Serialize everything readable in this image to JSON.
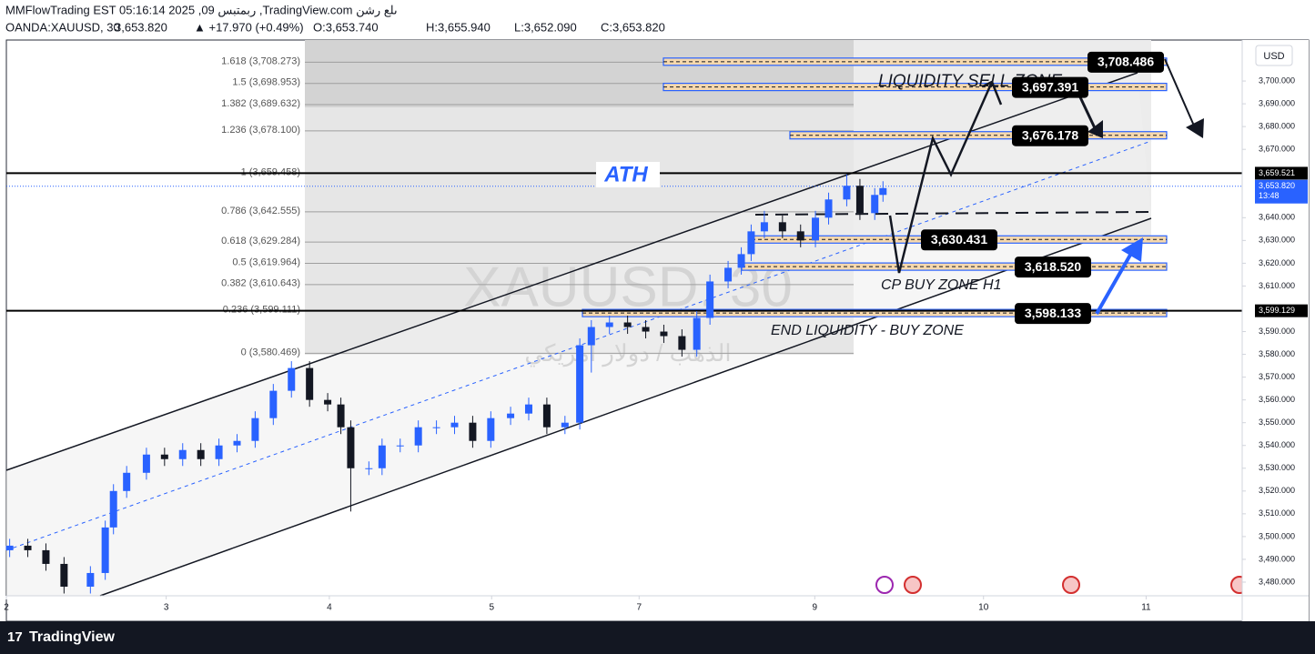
{
  "header": {
    "line1": "MMFlowTrading EST 05:16:14 2025 ,09 ربمتبس ,TradingView.com ىلع رشن",
    "symbol": "OANDA:XAUUSD, 30",
    "price": "3,653.820",
    "change": "▲ +17.970 (+0.49%)",
    "open": "O:3,653.740",
    "high": "H:3,655.940",
    "low": "L:3,652.090",
    "close": "C:3,653.820"
  },
  "footer": {
    "brand": "TradingView"
  },
  "chart_data": {
    "type": "candlestick",
    "up_color": "#2962ff",
    "down_color": "#131722",
    "currency": "USD",
    "x": [
      0.02,
      0.13,
      0.24,
      0.35,
      0.51,
      0.6,
      0.65,
      0.73,
      0.85,
      0.96,
      1.07,
      1.18,
      1.29,
      1.4,
      1.51,
      1.62,
      1.73,
      1.84,
      1.95,
      2.03,
      2.09,
      2.2,
      2.28,
      2.39,
      2.5,
      2.61,
      2.72,
      2.83,
      2.94,
      3.06,
      3.17,
      3.28,
      3.39,
      3.48,
      3.55,
      3.66,
      3.77,
      3.88,
      3.99,
      4.1,
      4.19,
      4.27,
      4.38,
      4.46,
      4.52,
      4.6,
      4.71,
      4.82,
      4.91,
      4.99,
      5.1,
      5.18,
      5.27,
      5.32
    ],
    "open": [
      3494,
      3496,
      3494,
      3488,
      3478,
      3484,
      3504,
      3520,
      3528,
      3536,
      3534,
      3538,
      3534,
      3540,
      3542,
      3552,
      3564,
      3574,
      3560,
      3558,
      3548,
      3530,
      3530,
      3540,
      3540,
      3548,
      3548,
      3550,
      3542,
      3552,
      3554,
      3558,
      3548,
      3550,
      3584,
      3592,
      3594,
      3592,
      3590,
      3588,
      3582,
      3596,
      3612,
      3618,
      3624,
      3634,
      3638,
      3634,
      3630,
      3640,
      3648,
      3654,
      3642,
      3650
    ],
    "high": [
      3499,
      3499,
      3497,
      3491,
      3487,
      3507,
      3523,
      3531,
      3539,
      3539,
      3541,
      3541,
      3543,
      3545,
      3555,
      3567,
      3577,
      3577,
      3563,
      3561,
      3551,
      3533,
      3543,
      3543,
      3551,
      3551,
      3553,
      3553,
      3555,
      3557,
      3561,
      3561,
      3553,
      3587,
      3595,
      3597,
      3597,
      3595,
      3593,
      3591,
      3599,
      3615,
      3621,
      3627,
      3637,
      3643,
      3641,
      3637,
      3643,
      3651,
      3659,
      3657,
      3653,
      3656
    ],
    "low": [
      3491,
      3491,
      3485,
      3475,
      3475,
      3481,
      3501,
      3517,
      3525,
      3531,
      3531,
      3531,
      3531,
      3537,
      3539,
      3549,
      3561,
      3557,
      3555,
      3545,
      3511,
      3527,
      3527,
      3537,
      3537,
      3545,
      3545,
      3539,
      3539,
      3549,
      3551,
      3545,
      3545,
      3547,
      3572,
      3589,
      3589,
      3587,
      3585,
      3579,
      3579,
      3593,
      3609,
      3615,
      3621,
      3631,
      3631,
      3627,
      3627,
      3637,
      3645,
      3639,
      3639,
      3647
    ],
    "close": [
      3496,
      3494,
      3488,
      3478,
      3484,
      3504,
      3520,
      3528,
      3536,
      3534,
      3538,
      3534,
      3540,
      3542,
      3552,
      3564,
      3574,
      3560,
      3558,
      3548,
      3530,
      3530,
      3540,
      3540,
      3548,
      3548,
      3550,
      3542,
      3552,
      3554,
      3558,
      3548,
      3550,
      3584,
      3592,
      3594,
      3592,
      3590,
      3588,
      3582,
      3596,
      3612,
      3618,
      3624,
      3634,
      3638,
      3634,
      3630,
      3640,
      3648,
      3654,
      3642,
      3650,
      3653
    ],
    "xlim": [
      0,
      7.5
    ],
    "xticks": [
      {
        "value": 0,
        "label": "2"
      },
      {
        "value": 0.97,
        "label": "3"
      },
      {
        "value": 1.96,
        "label": "4"
      },
      {
        "value": 2.945,
        "label": "5"
      },
      {
        "value": 3.84,
        "label": "7"
      },
      {
        "value": 4.906,
        "label": "9"
      },
      {
        "value": 5.93,
        "label": "10"
      },
      {
        "value": 6.917,
        "label": "11"
      }
    ],
    "ylim": [
      3474,
      3718
    ],
    "yticks": [
      {
        "value": 3480,
        "label": "3,480.000"
      },
      {
        "value": 3490,
        "label": "3,490.000"
      },
      {
        "value": 3500,
        "label": "3,500.000"
      },
      {
        "value": 3510,
        "label": "3,510.000"
      },
      {
        "value": 3520,
        "label": "3,520.000"
      },
      {
        "value": 3530,
        "label": "3,530.000"
      },
      {
        "value": 3540,
        "label": "3,540.000"
      },
      {
        "value": 3550,
        "label": "3,550.000"
      },
      {
        "value": 3560,
        "label": "3,560.000"
      },
      {
        "value": 3570,
        "label": "3,570.000"
      },
      {
        "value": 3580,
        "label": "3,580.000"
      },
      {
        "value": 3590,
        "label": "3,590.000"
      },
      {
        "value": 3610,
        "label": "3,610.000"
      },
      {
        "value": 3620,
        "label": "3,620.000"
      },
      {
        "value": 3630,
        "label": "3,630.000"
      },
      {
        "value": 3640,
        "label": "3,640.000"
      },
      {
        "value": 3670,
        "label": "3,670.000"
      },
      {
        "value": 3680,
        "label": "3,680.000"
      },
      {
        "value": 3690,
        "label": "3,690.000"
      },
      {
        "value": 3700,
        "label": "3,700.000"
      }
    ],
    "fib_levels": [
      {
        "value": 3708.273,
        "label": "1.618 (3,708.273)"
      },
      {
        "value": 3698.953,
        "label": "1.5 (3,698.953)"
      },
      {
        "value": 3689.632,
        "label": "1.382 (3,689.632)"
      },
      {
        "value": 3678.1,
        "label": "1.236 (3,678.100)"
      },
      {
        "value": 3659.458,
        "label": "1 (3,659.458)"
      },
      {
        "value": 3642.555,
        "label": "0.786 (3,642.555)"
      },
      {
        "value": 3629.284,
        "label": "0.618 (3,629.284)"
      },
      {
        "value": 3619.964,
        "label": "0.5 (3,619.964)"
      },
      {
        "value": 3610.643,
        "label": "0.382 (3,610.643)"
      },
      {
        "value": 3599.111,
        "label": "0.236 (3,599.111)"
      },
      {
        "value": 3580.469,
        "label": "0 (3,580.469)"
      }
    ],
    "zones": [
      {
        "value": 3708.486,
        "label": "3,708.486"
      },
      {
        "value": 3697.391,
        "label": "3,697.391"
      },
      {
        "value": 3676.178,
        "label": "3,676.178"
      },
      {
        "value": 3630.431,
        "label": "3,630.431"
      },
      {
        "value": 3618.52,
        "label": "3,618.520"
      },
      {
        "value": 3598.133,
        "label": "3,598.133"
      }
    ],
    "levels": [
      {
        "value": 3659.521,
        "label": "3,659.521"
      },
      {
        "value": 3599.129,
        "label": "3,599.129"
      }
    ],
    "last_price": {
      "value": 3653.82,
      "label": "3,653.820",
      "countdown": "13:48"
    },
    "annotations": [
      "ATH",
      "LIQUIDITY SELL ZONE",
      "CP BUY ZONE H1",
      "END LIQUIDITY - BUY ZONE"
    ],
    "watermark": [
      "XAUUSD, 30",
      "الذهب / دولار امريكي"
    ]
  }
}
